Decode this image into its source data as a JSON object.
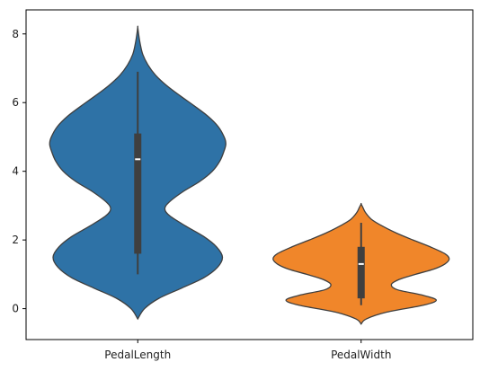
{
  "chart_data": {
    "type": "violin",
    "title": "",
    "xlabel": "",
    "ylabel": "",
    "categories": [
      "PedalLength",
      "PedalWidth"
    ],
    "ylim": [
      -0.9,
      8.7
    ],
    "yticks": [
      0,
      2,
      4,
      6,
      8
    ],
    "yticklabels": [
      "0",
      "2",
      "4",
      "6",
      "8"
    ],
    "grid": false,
    "series": [
      {
        "category": "PedalLength",
        "color": "#2e72a6",
        "kde_min": -0.3,
        "kde_max": 8.2,
        "density": [
          [
            -0.3,
            0.0
          ],
          [
            0.0,
            0.08
          ],
          [
            0.3,
            0.25
          ],
          [
            0.6,
            0.52
          ],
          [
            0.9,
            0.78
          ],
          [
            1.2,
            0.94
          ],
          [
            1.5,
            1.0
          ],
          [
            1.8,
            0.93
          ],
          [
            2.1,
            0.78
          ],
          [
            2.4,
            0.57
          ],
          [
            2.7,
            0.38
          ],
          [
            2.9,
            0.32
          ],
          [
            3.1,
            0.37
          ],
          [
            3.4,
            0.53
          ],
          [
            3.7,
            0.73
          ],
          [
            4.0,
            0.88
          ],
          [
            4.3,
            0.97
          ],
          [
            4.6,
            1.02
          ],
          [
            4.8,
            1.04
          ],
          [
            5.0,
            1.02
          ],
          [
            5.3,
            0.95
          ],
          [
            5.6,
            0.83
          ],
          [
            5.9,
            0.67
          ],
          [
            6.2,
            0.5
          ],
          [
            6.5,
            0.34
          ],
          [
            6.8,
            0.21
          ],
          [
            7.1,
            0.12
          ],
          [
            7.4,
            0.06
          ],
          [
            7.7,
            0.03
          ],
          [
            8.0,
            0.01
          ],
          [
            8.2,
            0.0
          ]
        ],
        "box": {
          "min": 1.0,
          "q1": 1.6,
          "median": 4.35,
          "q3": 5.1,
          "max": 6.9
        }
      },
      {
        "category": "PedalWidth",
        "color": "#f0862a",
        "kde_min": -0.45,
        "kde_max": 3.05,
        "density": [
          [
            -0.45,
            0.0
          ],
          [
            -0.3,
            0.06
          ],
          [
            -0.1,
            0.3
          ],
          [
            0.1,
            0.72
          ],
          [
            0.25,
            0.87
          ],
          [
            0.4,
            0.7
          ],
          [
            0.55,
            0.42
          ],
          [
            0.7,
            0.35
          ],
          [
            0.85,
            0.44
          ],
          [
            1.0,
            0.63
          ],
          [
            1.15,
            0.84
          ],
          [
            1.3,
            0.97
          ],
          [
            1.45,
            1.02
          ],
          [
            1.6,
            0.97
          ],
          [
            1.8,
            0.8
          ],
          [
            2.0,
            0.6
          ],
          [
            2.2,
            0.41
          ],
          [
            2.4,
            0.25
          ],
          [
            2.6,
            0.12
          ],
          [
            2.8,
            0.05
          ],
          [
            2.95,
            0.02
          ],
          [
            3.05,
            0.0
          ]
        ],
        "box": {
          "min": 0.1,
          "q1": 0.3,
          "median": 1.3,
          "q3": 1.8,
          "max": 2.5
        }
      }
    ]
  }
}
